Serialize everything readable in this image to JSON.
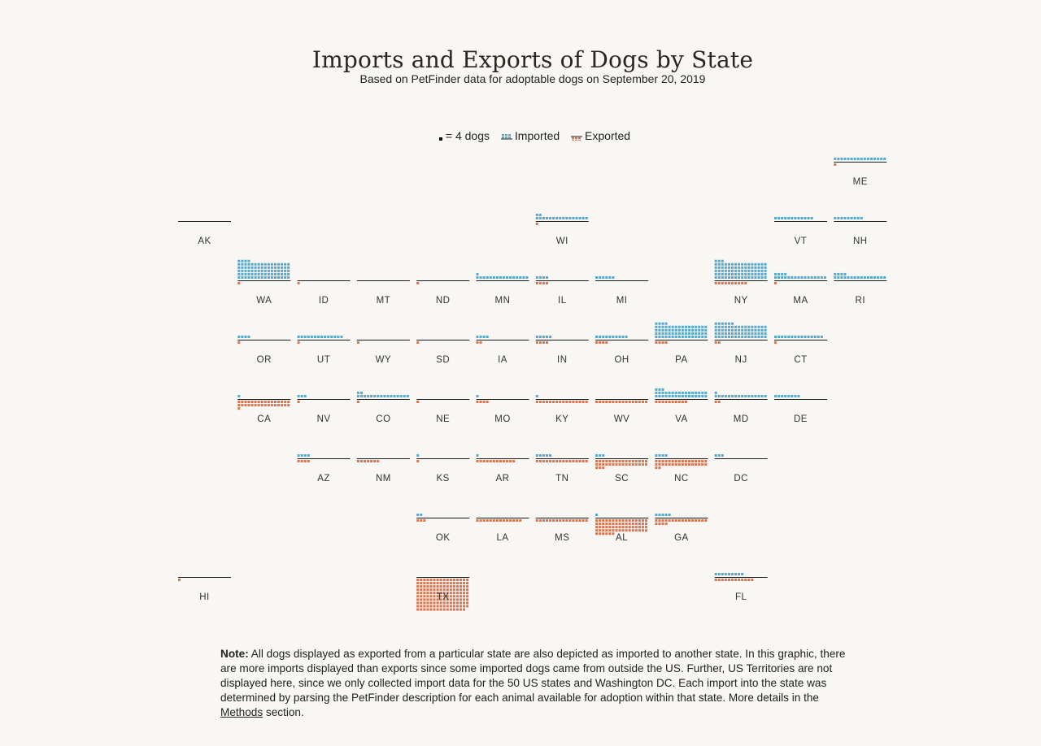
{
  "title": "Imports and Exports of Dogs by State",
  "subtitle": "Based on PetFinder data for adoptable dogs on September 20, 2019",
  "legend": {
    "unit_label": "= 4 dogs",
    "imported_label": "Imported",
    "exported_label": "Exported"
  },
  "colors": {
    "imported": "#56a9cb",
    "exported": "#d9744f",
    "unit": "#111111",
    "baseline": "#1a1a1a",
    "label": "#333333"
  },
  "note": {
    "lead": "Note:",
    "body": "All dogs displayed as exported from a particular state are also depicted as imported to another state. In this graphic, there are more imports displayed than exports since some imported dogs came from outside the US. Further, US Territories are not displayed here, since we only collected import data for the 50 US states and Washington DC. Each import into the state was determined by parsing the PetFinder description for each animal available for adoption within that state. More details in the",
    "link": "Methods",
    "tail": "section."
  },
  "chart_data": {
    "type": "waffle tile grid map",
    "unit_dogs_per_square": 4,
    "squares_per_row": 16,
    "series": [
      {
        "name": "Imported"
      },
      {
        "name": "Exported"
      }
    ],
    "states": [
      {
        "state": "ME",
        "row": 0,
        "col": 11,
        "imported": 16,
        "exported": 1
      },
      {
        "state": "AK",
        "row": 1,
        "col": 0,
        "imported": 0,
        "exported": 0
      },
      {
        "state": "WI",
        "row": 1,
        "col": 6,
        "imported": 18,
        "exported": 1
      },
      {
        "state": "VT",
        "row": 1,
        "col": 10,
        "imported": 12,
        "exported": 0
      },
      {
        "state": "NH",
        "row": 1,
        "col": 11,
        "imported": 9,
        "exported": 0
      },
      {
        "state": "WA",
        "row": 2,
        "col": 1,
        "imported": 84,
        "exported": 1
      },
      {
        "state": "ID",
        "row": 2,
        "col": 2,
        "imported": 0,
        "exported": 1
      },
      {
        "state": "MT",
        "row": 2,
        "col": 3,
        "imported": 0,
        "exported": 0
      },
      {
        "state": "ND",
        "row": 2,
        "col": 4,
        "imported": 0,
        "exported": 1
      },
      {
        "state": "MN",
        "row": 2,
        "col": 5,
        "imported": 17,
        "exported": 0
      },
      {
        "state": "IL",
        "row": 2,
        "col": 6,
        "imported": 4,
        "exported": 4
      },
      {
        "state": "MI",
        "row": 2,
        "col": 7,
        "imported": 6,
        "exported": 0
      },
      {
        "state": "NY",
        "row": 2,
        "col": 9,
        "imported": 83,
        "exported": 10
      },
      {
        "state": "MA",
        "row": 2,
        "col": 10,
        "imported": 20,
        "exported": 1
      },
      {
        "state": "RI",
        "row": 2,
        "col": 11,
        "imported": 20,
        "exported": 0
      },
      {
        "state": "OR",
        "row": 3,
        "col": 1,
        "imported": 4,
        "exported": 1
      },
      {
        "state": "UT",
        "row": 3,
        "col": 2,
        "imported": 14,
        "exported": 1
      },
      {
        "state": "WY",
        "row": 3,
        "col": 3,
        "imported": 0,
        "exported": 1
      },
      {
        "state": "SD",
        "row": 3,
        "col": 4,
        "imported": 0,
        "exported": 1
      },
      {
        "state": "IA",
        "row": 3,
        "col": 5,
        "imported": 4,
        "exported": 2
      },
      {
        "state": "IN",
        "row": 3,
        "col": 6,
        "imported": 5,
        "exported": 4
      },
      {
        "state": "OH",
        "row": 3,
        "col": 7,
        "imported": 10,
        "exported": 4
      },
      {
        "state": "PA",
        "row": 3,
        "col": 8,
        "imported": 68,
        "exported": 4
      },
      {
        "state": "NJ",
        "row": 3,
        "col": 9,
        "imported": 70,
        "exported": 2
      },
      {
        "state": "CT",
        "row": 3,
        "col": 10,
        "imported": 15,
        "exported": 1
      },
      {
        "state": "CA",
        "row": 4,
        "col": 1,
        "imported": 1,
        "exported": 33
      },
      {
        "state": "NV",
        "row": 4,
        "col": 2,
        "imported": 3,
        "exported": 1
      },
      {
        "state": "CO",
        "row": 4,
        "col": 3,
        "imported": 18,
        "exported": 1
      },
      {
        "state": "NE",
        "row": 4,
        "col": 4,
        "imported": 0,
        "exported": 1
      },
      {
        "state": "MO",
        "row": 4,
        "col": 5,
        "imported": 1,
        "exported": 4
      },
      {
        "state": "KY",
        "row": 4,
        "col": 6,
        "imported": 1,
        "exported": 16
      },
      {
        "state": "WV",
        "row": 4,
        "col": 7,
        "imported": 0,
        "exported": 16
      },
      {
        "state": "VA",
        "row": 4,
        "col": 8,
        "imported": 35,
        "exported": 10
      },
      {
        "state": "MD",
        "row": 4,
        "col": 9,
        "imported": 17,
        "exported": 2
      },
      {
        "state": "DE",
        "row": 4,
        "col": 10,
        "imported": 8,
        "exported": 0
      },
      {
        "state": "AZ",
        "row": 5,
        "col": 2,
        "imported": 4,
        "exported": 4
      },
      {
        "state": "NM",
        "row": 5,
        "col": 3,
        "imported": 0,
        "exported": 7
      },
      {
        "state": "KS",
        "row": 5,
        "col": 4,
        "imported": 1,
        "exported": 1
      },
      {
        "state": "AR",
        "row": 5,
        "col": 5,
        "imported": 1,
        "exported": 12
      },
      {
        "state": "TN",
        "row": 5,
        "col": 6,
        "imported": 5,
        "exported": 16
      },
      {
        "state": "SC",
        "row": 5,
        "col": 7,
        "imported": 3,
        "exported": 35
      },
      {
        "state": "NC",
        "row": 5,
        "col": 8,
        "imported": 4,
        "exported": 34
      },
      {
        "state": "DC",
        "row": 5,
        "col": 9,
        "imported": 3,
        "exported": 0
      },
      {
        "state": "OK",
        "row": 6,
        "col": 4,
        "imported": 2,
        "exported": 3
      },
      {
        "state": "LA",
        "row": 6,
        "col": 5,
        "imported": 0,
        "exported": 14
      },
      {
        "state": "MS",
        "row": 6,
        "col": 6,
        "imported": 0,
        "exported": 16
      },
      {
        "state": "AL",
        "row": 6,
        "col": 7,
        "imported": 1,
        "exported": 70
      },
      {
        "state": "GA",
        "row": 6,
        "col": 8,
        "imported": 5,
        "exported": 20
      },
      {
        "state": "HI",
        "row": 7,
        "col": 0,
        "imported": 0,
        "exported": 1
      },
      {
        "state": "TX",
        "row": 7,
        "col": 4,
        "imported": 0,
        "exported": 159
      },
      {
        "state": "FL",
        "row": 7,
        "col": 9,
        "imported": 9,
        "exported": 12
      }
    ]
  }
}
